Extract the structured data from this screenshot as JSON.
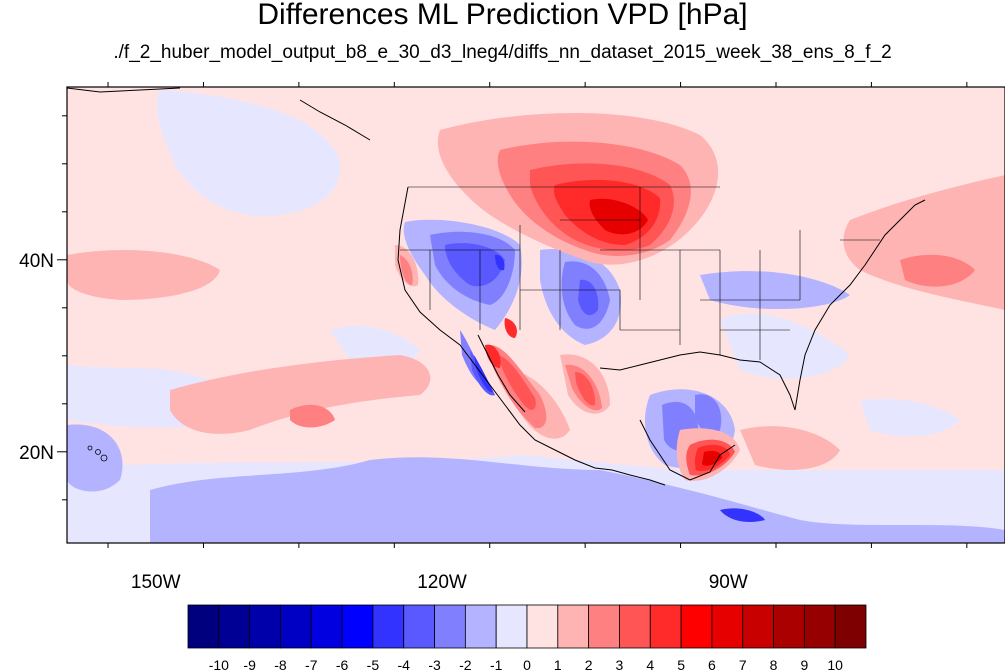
{
  "title": "Differences ML Prediction VPD [hPa]",
  "subtitle": "./f_2_huber_model_output_b8_e_30_d3_lneg4/diffs_nn_dataset_2015_week_38_ens_8_f_2",
  "map": {
    "lon_range": [
      -159.3,
      -61
    ],
    "lat_range": [
      10.5,
      58
    ],
    "y_ticks": [
      {
        "lat": 40,
        "label": "40N"
      },
      {
        "lat": 20,
        "label": "20N"
      }
    ],
    "x_ticks": [
      {
        "lon": -150,
        "label": "150W"
      },
      {
        "lon": -120,
        "label": "120W"
      },
      {
        "lon": -90,
        "label": "90W"
      }
    ],
    "regions": [
      {
        "name": "north-pacific-diff",
        "value": 1,
        "color": "#ffe3e3",
        "lon": -150,
        "lat": 52
      },
      {
        "name": "pacific-positive-band",
        "value": 2,
        "color": "#ffb4b4",
        "lon": -138,
        "lat": 27
      },
      {
        "name": "pacific-west-pos",
        "value": 2,
        "color": "#ffb4b4",
        "lon": -150,
        "lat": 38
      },
      {
        "name": "northern-plains-pos",
        "value": 5,
        "color": "#ff2a2a",
        "lon": -98,
        "lat": 47
      },
      {
        "name": "northern-plains-core",
        "value": 6,
        "color": "#e60000",
        "lon": -96,
        "lat": 46
      },
      {
        "name": "great-basin-neg",
        "value": -4,
        "color": "#5959ff",
        "lon": -115,
        "lat": 41
      },
      {
        "name": "rockies-neg",
        "value": -3,
        "color": "#8080ff",
        "lon": -104,
        "lat": 37
      },
      {
        "name": "gulf-of-mexico-neg",
        "value": -2,
        "color": "#b3b3ff",
        "lon": -92,
        "lat": 23
      },
      {
        "name": "yucatan-pos",
        "value": 6,
        "color": "#e60000",
        "lon": -89,
        "lat": 19
      },
      {
        "name": "baja-pos",
        "value": 5,
        "color": "#ff2a2a",
        "lon": -111,
        "lat": 28
      },
      {
        "name": "baja-coast-neg",
        "value": -5,
        "color": "#3333ff",
        "lon": -115,
        "lat": 29
      },
      {
        "name": "sierra-madre-pos",
        "value": 4,
        "color": "#ff5555",
        "lon": -103,
        "lat": 27
      },
      {
        "name": "tropical-pacific-neg",
        "value": -2,
        "color": "#b3b3ff",
        "lon": -125,
        "lat": 14
      },
      {
        "name": "atlantic-pos",
        "value": 2,
        "color": "#ffb4b4",
        "lon": -66,
        "lat": 40
      }
    ]
  },
  "colorbar": {
    "colors": [
      "#00007f",
      "#000095",
      "#0000ab",
      "#0000c4",
      "#0000e0",
      "#0000ff",
      "#3333ff",
      "#5959ff",
      "#8080ff",
      "#b3b3ff",
      "#e6e6ff",
      "#ffe3e3",
      "#ffb4b4",
      "#ff8080",
      "#ff5555",
      "#ff2a2a",
      "#ff0000",
      "#e60000",
      "#c80000",
      "#aa0000",
      "#960000",
      "#7f0000"
    ],
    "labels": [
      "-10",
      "-9",
      "-8",
      "-7",
      "-6",
      "-5",
      "-4",
      "-3",
      "-2",
      "-1",
      "0",
      "1",
      "2",
      "3",
      "4",
      "5",
      "6",
      "7",
      "8",
      "9",
      "10"
    ]
  }
}
